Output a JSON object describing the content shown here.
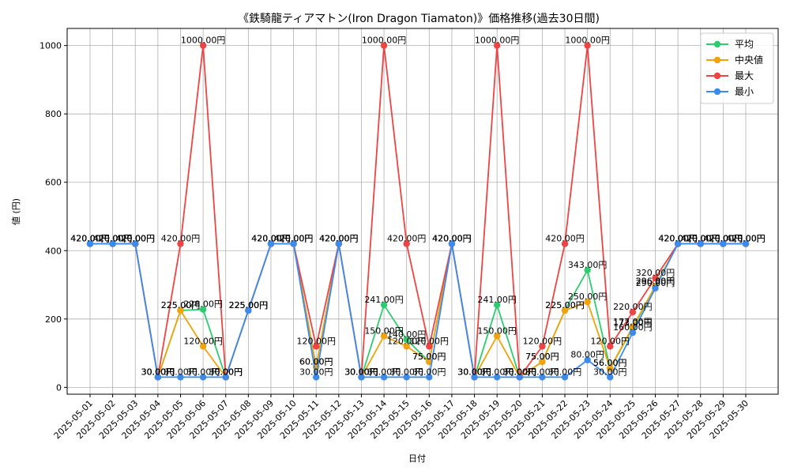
{
  "chart_data": {
    "type": "line",
    "title": "《鉄騎龍ティアマトン(Iron Dragon Tiamaton)》価格推移(過去30日間)",
    "xlabel": "日付",
    "ylabel": "値 (円)",
    "ylim": [
      -20,
      1050
    ],
    "yticks": [
      0,
      200,
      400,
      600,
      800,
      1000
    ],
    "grid": true,
    "legend_position": "top-right",
    "label_suffix": "円",
    "categories": [
      "2025-05-01",
      "2025-05-02",
      "2025-05-03",
      "2025-05-04",
      "2025-05-05",
      "2025-05-06",
      "2025-05-07",
      "2025-05-08",
      "2025-05-09",
      "2025-05-10",
      "2025-05-11",
      "2025-05-12",
      "2025-05-13",
      "2025-05-14",
      "2025-05-15",
      "2025-05-16",
      "2025-05-17",
      "2025-05-18",
      "2025-05-19",
      "2025-05-20",
      "2025-05-21",
      "2025-05-22",
      "2025-05-23",
      "2025-05-24",
      "2025-05-25",
      "2025-05-26",
      "2025-05-27",
      "2025-05-28",
      "2025-05-29",
      "2025-05-30"
    ],
    "series": [
      {
        "name": "平均",
        "color": "#2ecc71",
        "values": [
          420,
          420,
          420,
          30,
          225,
          228,
          30,
          225,
          420,
          420,
          60,
          420,
          30,
          241,
          140,
          75,
          420,
          30,
          241,
          30,
          75,
          225,
          343,
          56,
          173,
          296,
          420,
          420,
          420,
          420
        ]
      },
      {
        "name": "中央値",
        "color": "#f0a30a",
        "values": [
          420,
          420,
          420,
          30,
          225,
          120,
          30,
          225,
          420,
          420,
          60,
          420,
          30,
          150,
          120,
          75,
          420,
          30,
          150,
          30,
          75,
          225,
          250,
          56,
          177,
          296,
          420,
          420,
          420,
          420
        ]
      },
      {
        "name": "最大",
        "color": "#ef4444",
        "values": [
          420,
          420,
          420,
          30,
          420,
          1000,
          30,
          225,
          420,
          420,
          120,
          420,
          30,
          1000,
          420,
          120,
          420,
          30,
          1000,
          30,
          120,
          420,
          1000,
          120,
          220,
          320,
          420,
          420,
          420,
          420
        ]
      },
      {
        "name": "最小",
        "color": "#3b8bef",
        "values": [
          420,
          420,
          420,
          30,
          30,
          30,
          30,
          225,
          420,
          420,
          30,
          420,
          30,
          30,
          30,
          30,
          420,
          30,
          30,
          30,
          30,
          30,
          80,
          30,
          160,
          290,
          420,
          420,
          420,
          420
        ]
      }
    ]
  }
}
